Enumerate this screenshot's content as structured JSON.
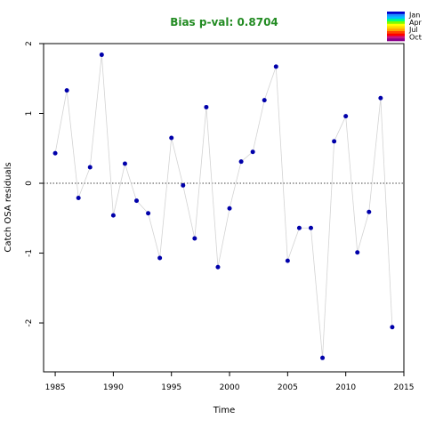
{
  "chart_data": {
    "type": "scatter",
    "title": "Bias p-val: 0.8704",
    "title_color": "#228b22",
    "xlabel": "Time",
    "ylabel": "Catch OSA residuals",
    "xlim": [
      1984,
      2015
    ],
    "ylim": [
      -2.7,
      2.0
    ],
    "xticks": [
      1985,
      1990,
      1995,
      2000,
      2005,
      2010,
      2015
    ],
    "yticks": [
      -2,
      -1,
      0,
      1,
      2
    ],
    "reference_line": 0,
    "grid": false,
    "point_color": "#0000aa",
    "line_color": "#d3d3d3",
    "x": [
      1985,
      1986,
      1987,
      1988,
      1989,
      1990,
      1991,
      1992,
      1993,
      1994,
      1995,
      1996,
      1997,
      1998,
      1999,
      2000,
      2001,
      2002,
      2003,
      2004,
      2005,
      2006,
      2007,
      2008,
      2009,
      2010,
      2011,
      2012,
      2013,
      2014
    ],
    "y": [
      0.43,
      1.33,
      -0.21,
      0.23,
      1.84,
      -0.46,
      0.28,
      -0.25,
      -0.43,
      -1.07,
      0.65,
      -0.03,
      -0.79,
      1.09,
      -1.2,
      -0.36,
      0.31,
      0.45,
      1.19,
      1.67,
      -1.11,
      -0.64,
      -0.64,
      -2.5,
      0.6,
      0.96,
      -0.99,
      -0.41,
      1.22,
      -2.06
    ],
    "legend": {
      "position": "top-right",
      "labels": [
        "Jan",
        "Apr",
        "Jul",
        "Oct"
      ],
      "colors": [
        "#0000cd",
        "#1e90ff",
        "#00bfff",
        "#00ff7f",
        "#7cfc00",
        "#ffff00",
        "#ffd700",
        "#ffa500",
        "#ff4500",
        "#ff0000",
        "#c71585",
        "#8b008b"
      ]
    }
  }
}
